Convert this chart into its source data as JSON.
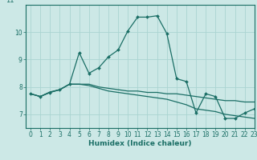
{
  "title": "",
  "xlabel": "Humidex (Indice chaleur)",
  "ylabel": "",
  "bg_color": "#cce8e6",
  "grid_color": "#aad4d1",
  "line_color": "#1a6e65",
  "xlim": [
    -0.5,
    23
  ],
  "ylim": [
    6.5,
    11.0
  ],
  "xticks": [
    0,
    1,
    2,
    3,
    4,
    5,
    6,
    7,
    8,
    9,
    10,
    11,
    12,
    13,
    14,
    15,
    16,
    17,
    18,
    19,
    20,
    21,
    22,
    23
  ],
  "yticks": [
    7,
    8,
    9,
    10
  ],
  "line1_x": [
    0,
    1,
    2,
    3,
    4,
    5,
    6,
    7,
    8,
    9,
    10,
    11,
    12,
    13,
    14,
    15,
    16,
    17,
    18,
    19,
    20,
    21,
    22,
    23
  ],
  "line1_y": [
    7.75,
    7.65,
    7.8,
    7.9,
    8.1,
    9.25,
    8.5,
    8.7,
    9.1,
    9.35,
    10.05,
    10.55,
    10.55,
    10.6,
    9.95,
    8.3,
    8.2,
    7.05,
    7.75,
    7.65,
    6.85,
    6.85,
    7.05,
    7.2
  ],
  "line2_x": [
    0,
    1,
    2,
    3,
    4,
    5,
    6,
    7,
    8,
    9,
    10,
    11,
    12,
    13,
    14,
    15,
    16,
    17,
    18,
    19,
    20,
    21,
    22,
    23
  ],
  "line2_y": [
    7.75,
    7.65,
    7.82,
    7.9,
    8.1,
    8.1,
    8.1,
    8.0,
    7.95,
    7.9,
    7.85,
    7.85,
    7.8,
    7.8,
    7.75,
    7.75,
    7.7,
    7.65,
    7.6,
    7.55,
    7.5,
    7.5,
    7.45,
    7.45
  ],
  "line3_x": [
    0,
    1,
    2,
    3,
    4,
    5,
    6,
    7,
    8,
    9,
    10,
    11,
    12,
    13,
    14,
    15,
    16,
    17,
    18,
    19,
    20,
    21,
    22,
    23
  ],
  "line3_y": [
    7.75,
    7.65,
    7.8,
    7.9,
    8.1,
    8.1,
    8.05,
    7.95,
    7.85,
    7.8,
    7.75,
    7.7,
    7.65,
    7.6,
    7.55,
    7.45,
    7.35,
    7.2,
    7.15,
    7.1,
    7.0,
    6.95,
    6.9,
    6.85
  ]
}
